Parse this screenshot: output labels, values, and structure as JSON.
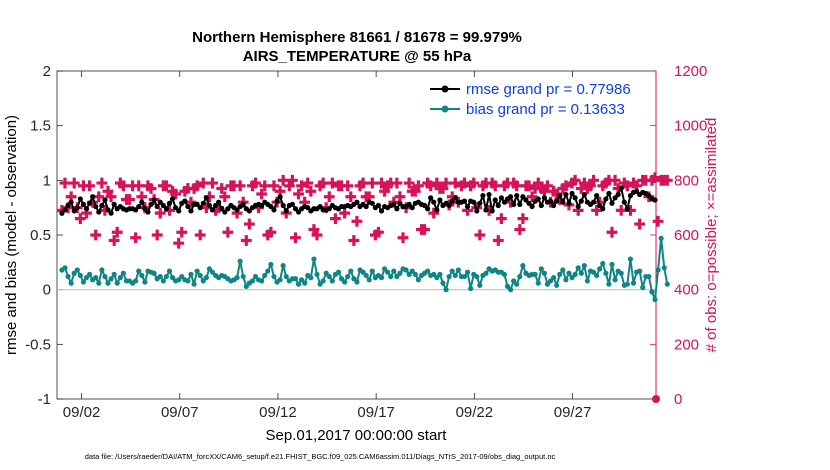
{
  "chart_data": {
    "type": "line",
    "title_line1": "Northern Hemisphere 81661 / 81678 = 99.979%",
    "title_line2": "AIRS_TEMPERATURE @ 55 hPa",
    "xlabel": "Sep.01,2017 00:00:00 start",
    "ylabel_left": "rmse and bias (model - observation)",
    "ylabel_right": "# of obs: o=possible; ×=assimilated",
    "footnote": "data file: /Users/raeder/DAI/ATM_forcXX/CAM6_setup/f.e21.FHIST_BGC.f09_025.CAM6assim.011/Diags_NTrS_2017-09/obs_diag_output.nc",
    "x_ticks": [
      "09/02",
      "09/07",
      "09/12",
      "09/17",
      "09/22",
      "09/27"
    ],
    "x_tick_days": [
      2,
      7,
      12,
      17,
      22,
      27
    ],
    "xlim_days": [
      0.75,
      31.25
    ],
    "ylim_left": [
      -1,
      2
    ],
    "y_ticks_left": [
      "-1",
      "-0.5",
      "0",
      "0.5",
      "1",
      "1.5",
      "2"
    ],
    "ylim_right": [
      0,
      1200
    ],
    "y_ticks_right": [
      "0",
      "200",
      "400",
      "600",
      "800",
      "1000",
      "1200"
    ],
    "colors": {
      "rmse": "#000000",
      "bias": "#0f8585",
      "obs": "#d6125a",
      "legend_text": "#0b3ee8",
      "zero_line": "#bfbfbf"
    },
    "legend": [
      {
        "name": "rmse grand pr = 0.77986"
      },
      {
        "name": "bias grand pr = 0.13633"
      }
    ],
    "series": [
      {
        "name": "rmse",
        "values": [
          0.7,
          0.73,
          0.77,
          0.8,
          0.72,
          0.75,
          0.83,
          0.78,
          0.74,
          0.79,
          0.85,
          0.76,
          0.71,
          0.77,
          0.82,
          0.73,
          0.7,
          0.78,
          0.74,
          0.76,
          0.74,
          0.73,
          0.74,
          0.74,
          0.73,
          0.76,
          0.8,
          0.74,
          0.71,
          0.78,
          0.82,
          0.76,
          0.8,
          0.77,
          0.74,
          0.79,
          0.83,
          0.75,
          0.72,
          0.79,
          0.81,
          0.76,
          0.72,
          0.78,
          0.78,
          0.75,
          0.79,
          0.84,
          0.77,
          0.73,
          0.77,
          0.8,
          0.74,
          0.71,
          0.74,
          0.77,
          0.75,
          0.73,
          0.76,
          0.78,
          0.74,
          0.72,
          0.75,
          0.77,
          0.78,
          0.77,
          0.8,
          0.78,
          0.76,
          0.73,
          0.81,
          0.85,
          0.77,
          0.72,
          0.77,
          0.78,
          0.74,
          0.71,
          0.74,
          0.76,
          0.75,
          0.72,
          0.74,
          0.74,
          0.76,
          0.73,
          0.73,
          0.74,
          0.77,
          0.75,
          0.74,
          0.76,
          0.76,
          0.77,
          0.76,
          0.78,
          0.8,
          0.76,
          0.78,
          0.76,
          0.8,
          0.79,
          0.75,
          0.77,
          0.72,
          0.76,
          0.75,
          0.77,
          0.78,
          0.74,
          0.79,
          0.76,
          0.76,
          0.78,
          0.75,
          0.79,
          0.8,
          0.78,
          0.77,
          0.74,
          0.84,
          0.8,
          0.73,
          0.82,
          0.77,
          0.79,
          0.77,
          0.81,
          0.84,
          0.8,
          0.8,
          0.81,
          0.76,
          0.81,
          0.8,
          0.72,
          0.79,
          0.86,
          0.73,
          0.87,
          0.72,
          0.82,
          0.77,
          0.84,
          0.8,
          0.83,
          0.85,
          0.78,
          0.86,
          0.78,
          0.85,
          0.82,
          0.79,
          0.76,
          0.81,
          0.83,
          0.77,
          0.84,
          0.8,
          0.81,
          0.77,
          0.81,
          0.86,
          0.8,
          0.87,
          0.79,
          0.88,
          0.84,
          0.76,
          0.81,
          0.87,
          0.8,
          0.78,
          0.8,
          0.86,
          0.77,
          0.74,
          0.83,
          0.88,
          0.79,
          0.84,
          0.87,
          0.93,
          0.8,
          0.74,
          0.86,
          0.89,
          0.9,
          0.87,
          0.89,
          0.88,
          0.86,
          0.83,
          0.82
        ]
      },
      {
        "name": "bias",
        "values": [
          0.18,
          0.2,
          0.12,
          0.06,
          0.15,
          0.18,
          0.13,
          0.07,
          0.11,
          0.14,
          0.09,
          0.11,
          0.06,
          0.18,
          0.12,
          0.06,
          0.1,
          0.14,
          0.06,
          0.11,
          0.15,
          0.08,
          0.08,
          0.06,
          0.08,
          0.17,
          0.13,
          0.07,
          0.17,
          0.16,
          0.15,
          0.1,
          0.12,
          0.08,
          0.12,
          0.17,
          0.11,
          0.08,
          0.09,
          0.12,
          0.09,
          0.08,
          0.14,
          0.05,
          0.17,
          0.13,
          0.08,
          0.11,
          0.19,
          0.16,
          0.13,
          0.11,
          0.13,
          0.12,
          0.1,
          0.08,
          0.09,
          0.11,
          0.26,
          0.12,
          0.03,
          0.06,
          0.08,
          0.12,
          0.09,
          0.08,
          0.13,
          0.17,
          0.23,
          0.12,
          0.07,
          0.09,
          0.22,
          0.12,
          0.08,
          0.1,
          0.1,
          0.05,
          0.09,
          0.06,
          0.13,
          0.11,
          0.28,
          0.14,
          0.05,
          0.08,
          0.15,
          0.12,
          0.08,
          0.14,
          0.16,
          0.1,
          0.07,
          0.12,
          0.17,
          0.1,
          0.07,
          0.18,
          0.16,
          0.13,
          0.09,
          0.17,
          0.11,
          0.13,
          0.11,
          0.19,
          0.16,
          0.12,
          0.17,
          0.12,
          0.15,
          0.19,
          0.18,
          0.14,
          0.17,
          0.14,
          0.09,
          0.13,
          0.15,
          0.17,
          0.13,
          0.14,
          0.11,
          0.14,
          0.06,
          0.0,
          0.12,
          0.17,
          0.13,
          0.18,
          0.12,
          0.12,
          0.16,
          0.01,
          0.14,
          0.12,
          0.04,
          0.13,
          0.15,
          0.19,
          0.17,
          0.18,
          0.16,
          0.16,
          0.14,
          0.03,
          0.0,
          0.08,
          0.05,
          0.12,
          0.22,
          0.15,
          0.13,
          0.14,
          0.14,
          0.06,
          0.19,
          0.15,
          0.05,
          0.08,
          0.11,
          0.04,
          0.14,
          0.18,
          0.09,
          0.15,
          0.11,
          0.14,
          0.2,
          0.15,
          0.22,
          0.08,
          0.17,
          0.16,
          0.13,
          0.19,
          0.24,
          0.15,
          0.05,
          0.23,
          0.09,
          0.17,
          0.15,
          0.04,
          0.05,
          0.28,
          0.06,
          0.16,
          0.17,
          0.02,
          0.12,
          0.12,
          -0.02,
          -0.09,
          0.18,
          0.47,
          0.2,
          0.05
        ]
      },
      {
        "name": "obs_assimilated",
        "values": [
          690,
          790,
          700,
          740,
          790,
          700,
          660,
          780,
          680,
          780,
          720,
          600,
          740,
          790,
          690,
          760,
          740,
          580,
          610,
          790,
          780,
          730,
          730,
          780,
          590,
          780,
          740,
          700,
          780,
          770,
          730,
          600,
          680,
          780,
          780,
          690,
          760,
          750,
          570,
          610,
          760,
          770,
          720,
          770,
          780,
          600,
          790,
          700,
          740,
          790,
          690,
          700,
          770,
          740,
          610,
          780,
          780,
          680,
          780,
          720,
          580,
          640,
          780,
          790,
          700,
          750,
          780,
          600,
          610,
          780,
          720,
          760,
          800,
          680,
          780,
          800,
          590,
          750,
          780,
          720,
          790,
          760,
          620,
          600,
          780,
          790,
          700,
          740,
          790,
          660,
          780,
          780,
          680,
          780,
          740,
          580,
          650,
          780,
          790,
          740,
          740,
          790,
          600,
          610,
          790,
          760,
          780,
          790,
          720,
          790,
          740,
          590,
          700,
          790,
          760,
          760,
          780,
          620,
          620,
          790,
          780,
          680,
          790,
          770,
          770,
          790,
          710,
          740,
          790,
          720,
          780,
          790,
          690,
          780,
          790,
          700,
          600,
          780,
          790,
          690,
          790,
          780,
          580,
          660,
          780,
          790,
          720,
          790,
          780,
          620,
          660,
          780,
          780,
          740,
          770,
          790,
          770,
          760,
          780,
          720,
          760,
          750,
          730,
          770,
          780,
          710,
          790,
          800,
          690,
          770,
          790,
          770,
          780,
          800,
          690,
          720,
          780,
          790,
          800,
          610,
          800,
          770,
          690,
          790,
          780,
          690,
          790,
          780,
          640,
          800,
          800,
          740,
          800,
          810,
          650,
          800,
          800,
          800
        ]
      }
    ]
  }
}
